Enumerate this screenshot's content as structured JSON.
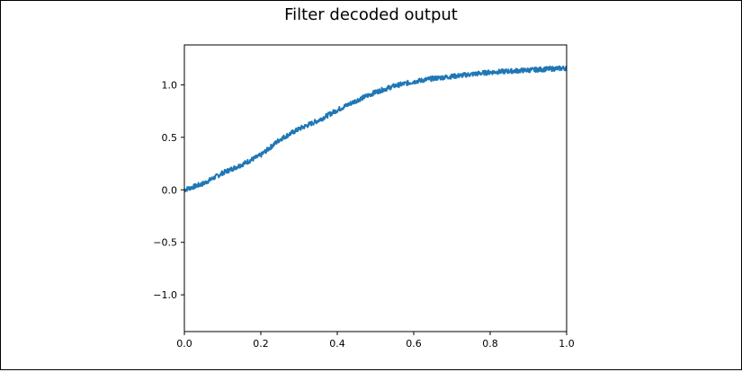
{
  "chart_data": {
    "type": "line",
    "title": "Filter decoded output",
    "xlabel": "",
    "ylabel": "",
    "xlim": [
      0.0,
      1.0
    ],
    "ylim": [
      -1.35,
      1.38
    ],
    "xticks": [
      0.0,
      0.2,
      0.4,
      0.6,
      0.8,
      1.0
    ],
    "xtick_labels": [
      "0.0",
      "0.2",
      "0.4",
      "0.6",
      "0.8",
      "1.0"
    ],
    "yticks": [
      -1.0,
      -0.5,
      0.0,
      0.5,
      1.0
    ],
    "ytick_labels": [
      "−1.0",
      "−0.5",
      "0.0",
      "0.5",
      "1.0"
    ],
    "grid": false,
    "series": [
      {
        "color": "#1f77b4",
        "x": [
          0.0,
          0.05,
          0.1,
          0.15,
          0.2,
          0.25,
          0.3,
          0.35,
          0.4,
          0.45,
          0.5,
          0.55,
          0.6,
          0.65,
          0.7,
          0.75,
          0.8,
          0.85,
          0.9,
          0.95,
          1.0
        ],
        "y": [
          0.0,
          0.06,
          0.16,
          0.24,
          0.33,
          0.48,
          0.58,
          0.66,
          0.76,
          0.85,
          0.93,
          0.99,
          1.03,
          1.06,
          1.08,
          1.1,
          1.12,
          1.13,
          1.14,
          1.15,
          1.16
        ]
      }
    ]
  }
}
